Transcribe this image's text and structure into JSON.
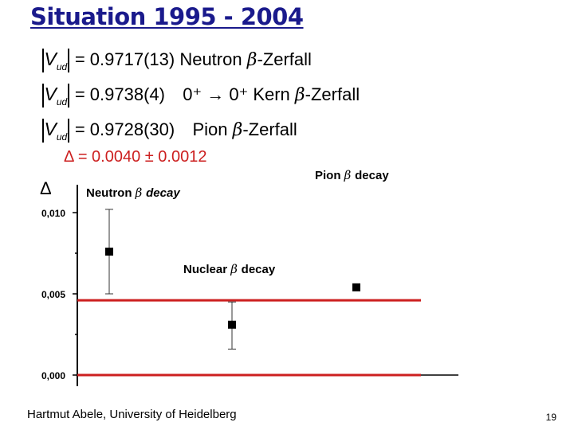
{
  "slide": {
    "title": "Situation 1995 - 2004",
    "footer": "Hartmut Abele, University of Heidelberg",
    "page_number": "19"
  },
  "equations": [
    {
      "lhs": "V",
      "sub": "ud",
      "rhs": "= 0.9717(13)",
      "extra_a": "",
      "arrow": "",
      "extra_b": "",
      "label": "Neutron",
      "beta": "β",
      "suffix": "-Zerfall"
    },
    {
      "lhs": "V",
      "sub": "ud",
      "rhs": "= 0.9738(4)",
      "extra_a": "0⁺",
      "arrow": "→",
      "extra_b": "0⁺",
      "label": "Kern",
      "beta": "β",
      "suffix": "-Zerfall"
    },
    {
      "lhs": "V",
      "sub": "ud",
      "rhs": "= 0.9728(30)",
      "extra_a": "",
      "arrow": "",
      "extra_b": "",
      "label": "Pion",
      "beta": "β",
      "suffix": "-Zerfall"
    }
  ],
  "delta_equation": "Δ = 0.0040 ± 0.0012",
  "colors": {
    "title": "#1a1a8c",
    "band": "#cc1f1f",
    "marker": "#000000"
  },
  "chart_data": {
    "type": "scatter",
    "ylabel": "Δ",
    "ylim": [
      0.0,
      0.011
    ],
    "yticks": [
      0.0,
      0.005,
      0.01
    ],
    "ytick_labels": [
      "0,000",
      "0,005",
      "0,010"
    ],
    "points": [
      {
        "name": "Neutron β decay",
        "label_main": "Neutron",
        "label_beta": "β",
        "label_tail": "decay",
        "x": 1,
        "y": 0.0076,
        "err_low": 0.0026,
        "err_high": 0.0026
      },
      {
        "name": "Nuclear β decay",
        "label_main": "Nuclear",
        "label_beta": "β",
        "label_tail": "decay",
        "x": 2,
        "y": 0.0031,
        "err_low": 0.0015,
        "err_high": 0.0014
      },
      {
        "name": "Pion β decay",
        "label_main": "Pion",
        "label_beta": "β",
        "label_tail": "decay",
        "x": 3,
        "y": 0.0054,
        "err_low": 0.0,
        "err_high": 0.0
      }
    ],
    "hlines": [
      0.0046,
      0.0
    ]
  }
}
